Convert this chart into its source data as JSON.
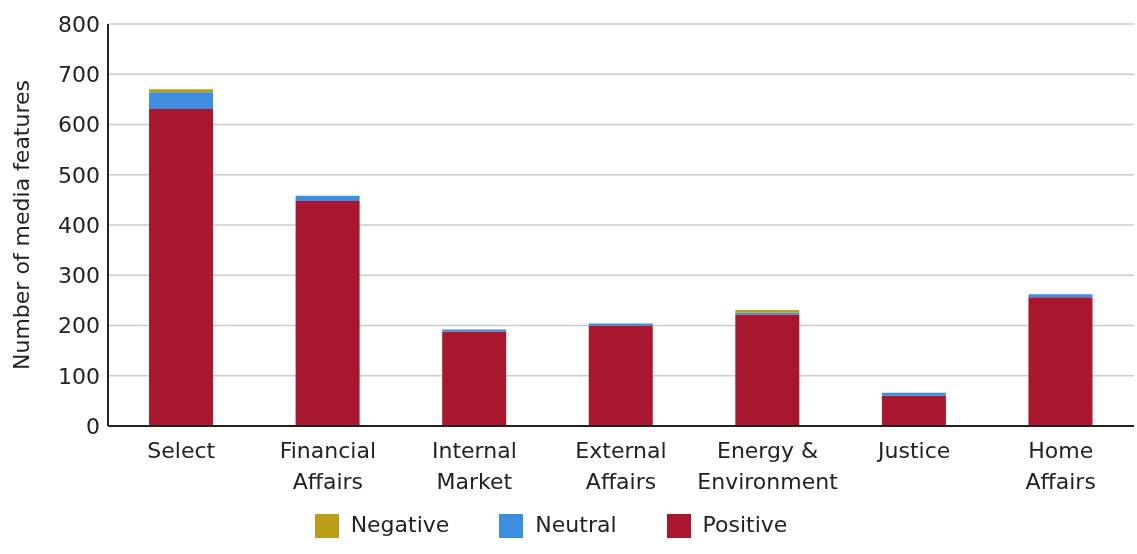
{
  "chart_data": {
    "type": "bar",
    "ylabel": "Number of media features",
    "categories": [
      "Select",
      "Financial Affairs",
      "Internal Market",
      "External Affairs",
      "Energy & Environment",
      "Justice",
      "Home Affairs"
    ],
    "series": [
      {
        "name": "Positive",
        "color": "#a8172e",
        "values": [
          631,
          448,
          188,
          200,
          222,
          60,
          256
        ]
      },
      {
        "name": "Neutral",
        "color": "#3d8ede",
        "values": [
          33,
          10,
          4,
          4,
          4,
          6,
          6
        ]
      },
      {
        "name": "Negative",
        "color": "#bb9e17",
        "values": [
          6,
          0,
          0,
          0,
          5,
          0,
          0
        ]
      }
    ],
    "stacked": true,
    "ylim": [
      0,
      800
    ],
    "yticks": [
      0,
      100,
      200,
      300,
      400,
      500,
      600,
      700,
      800
    ],
    "grid": "y",
    "legend": "bottom"
  }
}
